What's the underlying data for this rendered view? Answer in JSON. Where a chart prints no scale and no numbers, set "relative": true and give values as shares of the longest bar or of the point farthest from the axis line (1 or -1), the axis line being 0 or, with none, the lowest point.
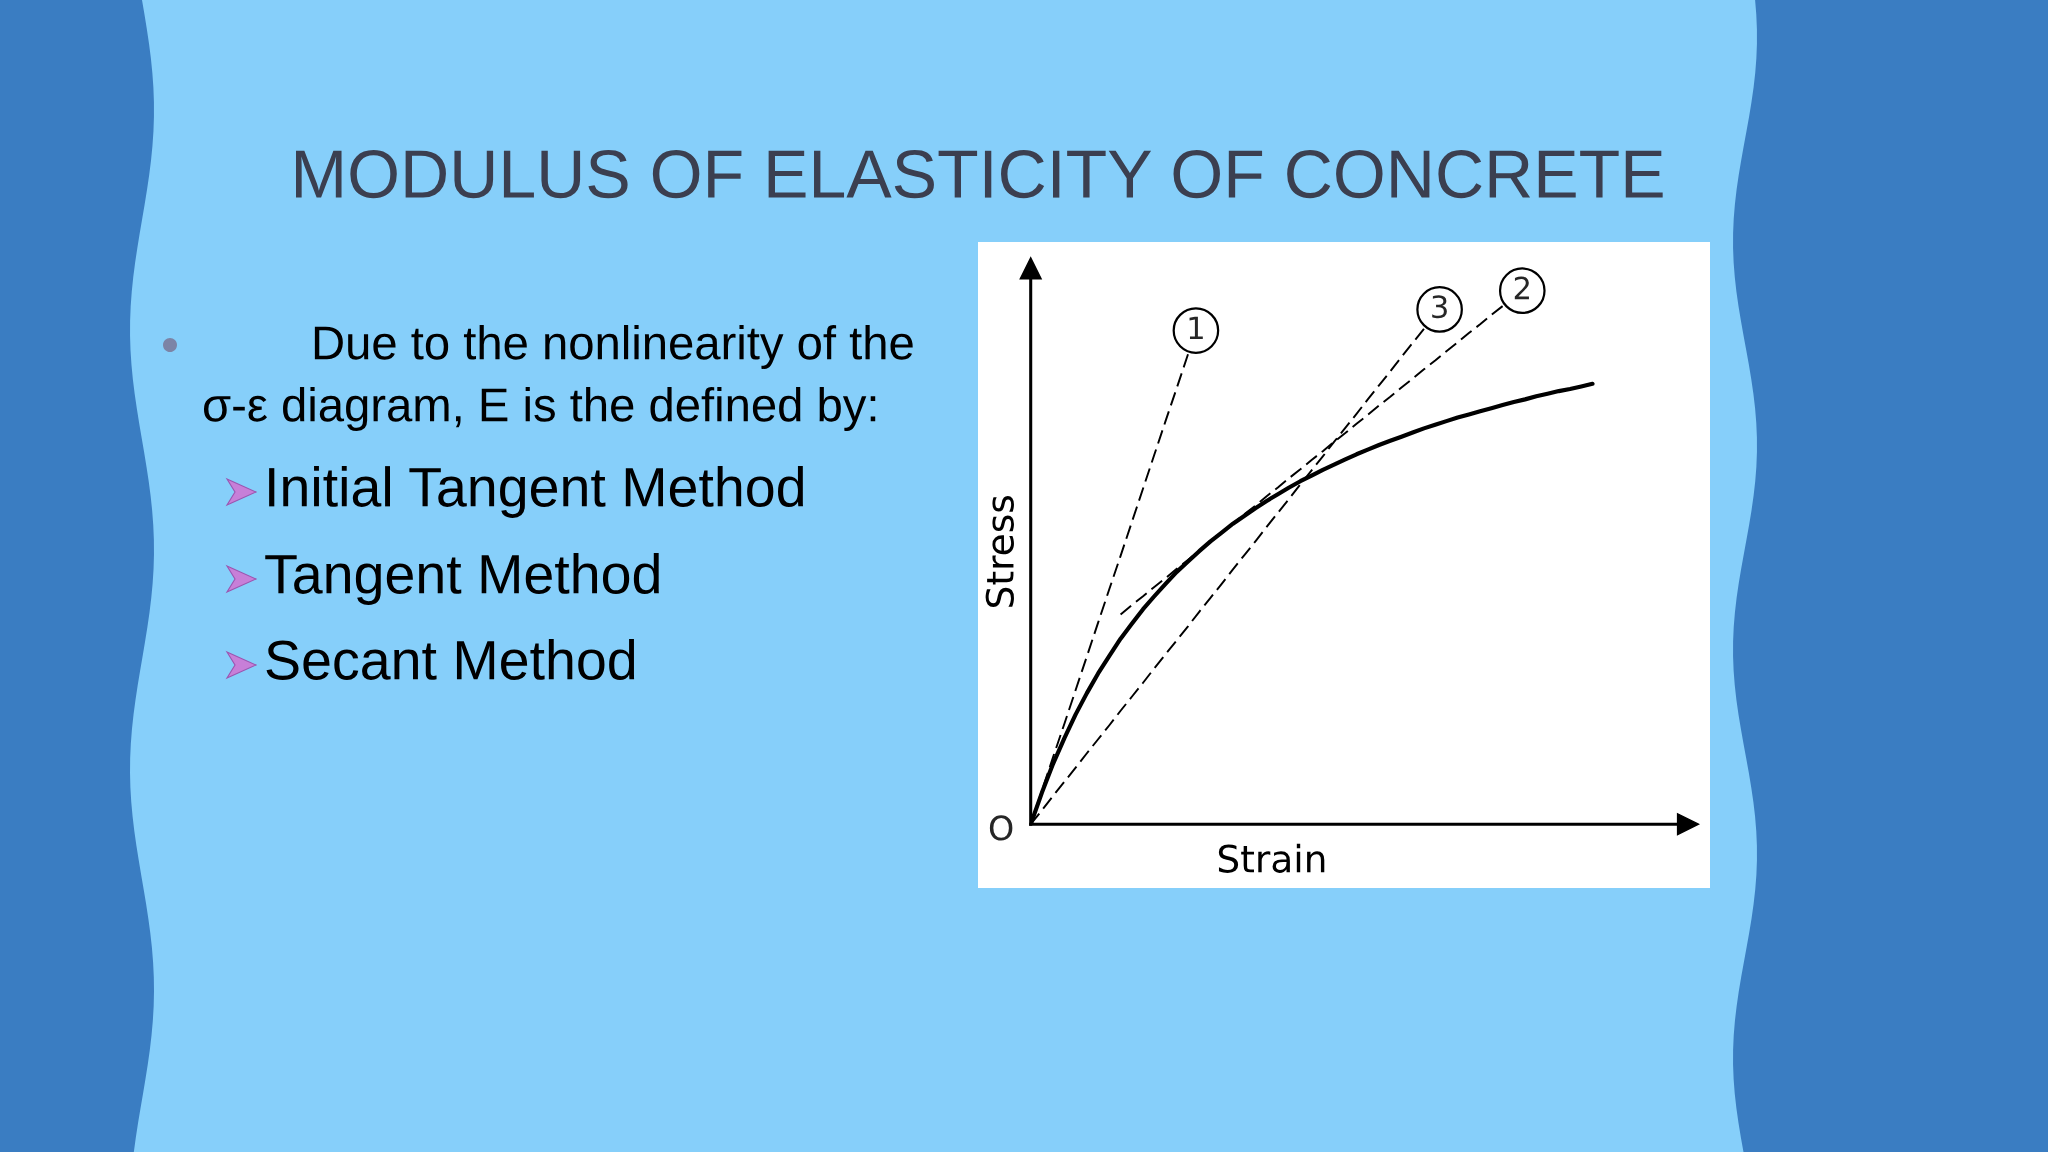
{
  "chart_data": {
    "type": "line",
    "title": "MODULUS OF ELASTICITY OF CONCRETE",
    "xlabel": "Strain",
    "ylabel": "Stress",
    "relative": true,
    "marker": "none",
    "categories": [
      null,
      null,
      null,
      null,
      null,
      null,
      null,
      null,
      null,
      null,
      null,
      null,
      null,
      null,
      null,
      null,
      null,
      null,
      null,
      null,
      null,
      null,
      null,
      null,
      null,
      null,
      null,
      null,
      null,
      null,
      null,
      null,
      null,
      null,
      null,
      null,
      null,
      null,
      null,
      null,
      null,
      null,
      null,
      null,
      null,
      null,
      null,
      null,
      null,
      null,
      null
    ],
    "series": [
      {
        "color": "#000000",
        "line_style": "solid",
        "values": [
          0,
          0.061,
          0.117,
          0.166,
          0.212,
          0.253,
          0.291,
          0.325,
          0.358,
          0.387,
          0.415,
          0.44,
          0.464,
          0.487,
          0.507,
          0.527,
          0.546,
          0.563,
          0.58,
          0.595,
          0.61,
          0.624,
          0.637,
          0.65,
          0.662,
          0.673,
          0.684,
          0.694,
          0.704,
          0.714,
          0.723,
          0.732,
          0.74,
          0.748,
          0.756,
          0.764,
          0.771,
          0.778,
          0.785,
          0.791,
          0.797,
          0.803,
          0.809,
          0.815,
          0.82,
          0.826,
          0.831,
          0.836,
          0.84,
          0.845,
          0.85
        ]
      },
      {
        "name": "1",
        "color": "#000000",
        "line_style": "dashed",
        "values": [
          0,
          0.065,
          0.13,
          0.194,
          0.259,
          0.324,
          0.389,
          0.454,
          0.518,
          0.583,
          0.648,
          0.713,
          0.778,
          0.842,
          0.907,
          null,
          null,
          null,
          null,
          null,
          null,
          null,
          null,
          null,
          null,
          null,
          null,
          null,
          null,
          null,
          null,
          null,
          null,
          null,
          null,
          null,
          null,
          null,
          null,
          null,
          null,
          null,
          null,
          null,
          null,
          null,
          null,
          null,
          null,
          null,
          null
        ]
      },
      {
        "name": "2",
        "color": "#000000",
        "line_style": "dashed",
        "values": [
          null,
          null,
          null,
          null,
          null,
          null,
          null,
          null,
          0.405,
          0.423,
          0.44,
          0.458,
          0.475,
          0.493,
          0.51,
          0.528,
          0.545,
          0.563,
          0.58,
          0.598,
          0.615,
          0.633,
          0.65,
          0.668,
          0.685,
          0.703,
          0.72,
          0.738,
          0.755,
          0.773,
          0.79,
          0.808,
          0.825,
          0.843,
          0.86,
          0.878,
          0.895,
          0.913,
          0.93,
          0.948,
          0.965,
          0.983,
          1.0,
          null,
          null,
          null,
          null,
          null,
          null,
          null,
          null
        ]
      },
      {
        "name": "3",
        "color": "#000000",
        "line_style": "dashed",
        "values": [
          0,
          0.027,
          0.055,
          0.082,
          0.109,
          0.137,
          0.164,
          0.191,
          0.219,
          0.246,
          0.273,
          0.301,
          0.328,
          0.355,
          0.382,
          0.41,
          0.437,
          0.464,
          0.492,
          0.519,
          0.546,
          0.574,
          0.601,
          0.628,
          0.656,
          0.683,
          0.71,
          0.738,
          0.765,
          0.792,
          0.82,
          0.847,
          0.874,
          0.902,
          0.929,
          0.956,
          null,
          null,
          null,
          null,
          null,
          null,
          null,
          null,
          null,
          null,
          null,
          null,
          null,
          null,
          null
        ]
      }
    ],
    "annotations": [
      "O",
      "Due to the nonlinearity of the\nσ-ε diagram, E is the defined by:",
      "Initial Tangent Method",
      "Tangent Method",
      "Secant Method"
    ]
  }
}
